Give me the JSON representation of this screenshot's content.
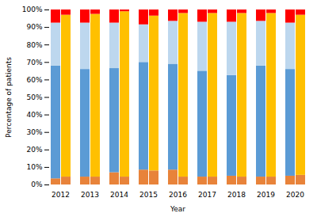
{
  "chart_data": {
    "type": "bar",
    "stacked": true,
    "xlabel": "Year",
    "ylabel": "Percentage of patients",
    "categories": [
      2012,
      2013,
      2014,
      2015,
      2016,
      2017,
      2018,
      2019,
      2020
    ],
    "stacks": [
      [
        {
          "color": "#E8833A",
          "values": [
            3.5,
            4.5,
            7.0,
            8.5,
            8.5,
            4.5,
            5.0,
            4.5,
            5.0
          ]
        },
        {
          "color": "#5B9BD5",
          "values": [
            64.5,
            61.5,
            59.5,
            61.5,
            60.5,
            60.5,
            57.5,
            63.5,
            61.0
          ]
        },
        {
          "color": "#BDD7EE",
          "values": [
            24.5,
            26.5,
            26.0,
            21.5,
            24.5,
            28.0,
            30.5,
            25.5,
            26.5
          ]
        },
        {
          "color": "#FF0000",
          "values": [
            7.5,
            7.5,
            7.5,
            8.5,
            6.5,
            7.0,
            7.0,
            6.5,
            7.5
          ]
        }
      ],
      [
        {
          "color": "#E8833A",
          "values": [
            4.5,
            4.5,
            4.5,
            8.0,
            4.5,
            4.5,
            4.5,
            4.5,
            5.5
          ]
        },
        {
          "color": "#FFC000",
          "values": [
            92.5,
            93.0,
            94.5,
            88.5,
            93.5,
            93.5,
            93.5,
            93.5,
            91.5
          ]
        },
        {
          "color": "#FF0000",
          "values": [
            3.0,
            2.5,
            1.0,
            3.5,
            2.0,
            2.0,
            2.0,
            2.0,
            3.0
          ]
        }
      ]
    ],
    "ylim": [
      0,
      100
    ],
    "yticks": [
      {
        "value": 0,
        "label": "0%"
      },
      {
        "value": 10,
        "label": "10%"
      },
      {
        "value": 20,
        "label": "20%"
      },
      {
        "value": 30,
        "label": "30%"
      },
      {
        "value": 40,
        "label": "40%"
      },
      {
        "value": 50,
        "label": "50%"
      },
      {
        "value": 60,
        "label": "60%"
      },
      {
        "value": 70,
        "label": "70%"
      },
      {
        "value": 80,
        "label": "80%"
      },
      {
        "value": 90,
        "label": "90%"
      },
      {
        "value": 100,
        "label": "100%"
      }
    ]
  }
}
